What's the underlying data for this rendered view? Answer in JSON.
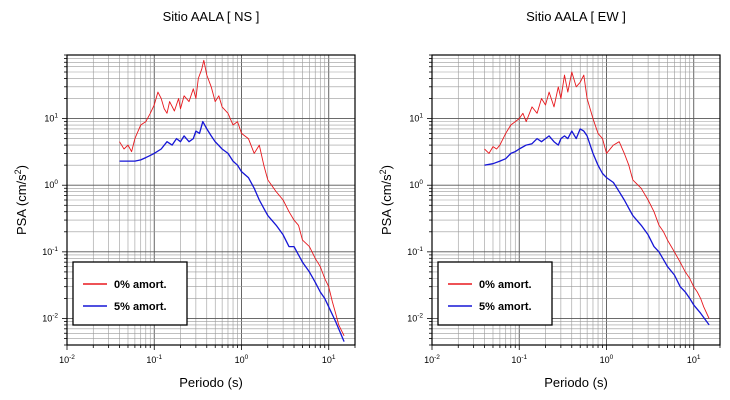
{
  "chart_data": [
    {
      "type": "line",
      "title": "Sitio AALA [ NS ]",
      "xlabel": "Periodo (s)",
      "ylabel": "PSA (cm/s",
      "ylabel_sup": "2",
      "ylabel_close": ")",
      "xscale": "log",
      "yscale": "log",
      "xlim": [
        0.01,
        20
      ],
      "ylim": [
        0.004,
        90
      ],
      "grid": true,
      "legend_position": "bottom-left",
      "xtick_labels": [
        {
          "value": 0.01,
          "base": "10",
          "exp": "-2"
        },
        {
          "value": 0.1,
          "base": "10",
          "exp": "-1"
        },
        {
          "value": 1,
          "base": "10",
          "exp": "0"
        },
        {
          "value": 10,
          "base": "10",
          "exp": "1"
        }
      ],
      "ytick_labels": [
        {
          "value": 0.01,
          "base": "10",
          "exp": "-2"
        },
        {
          "value": 0.1,
          "base": "10",
          "exp": "-1"
        },
        {
          "value": 1,
          "base": "10",
          "exp": "0"
        },
        {
          "value": 10,
          "base": "10",
          "exp": "1"
        }
      ],
      "series": [
        {
          "name": "0% amort.",
          "color": "#e8191e",
          "x": [
            0.04,
            0.045,
            0.05,
            0.055,
            0.06,
            0.07,
            0.08,
            0.09,
            0.1,
            0.11,
            0.12,
            0.13,
            0.14,
            0.15,
            0.17,
            0.19,
            0.2,
            0.22,
            0.25,
            0.28,
            0.3,
            0.32,
            0.35,
            0.37,
            0.4,
            0.45,
            0.5,
            0.55,
            0.6,
            0.7,
            0.8,
            0.9,
            1.0,
            1.2,
            1.4,
            1.6,
            1.8,
            2.0,
            2.5,
            3.0,
            3.5,
            4.0,
            4.5,
            5.0,
            6.0,
            7.0,
            8.0,
            9.0,
            10.0,
            11.0,
            12.0,
            13.0,
            15.0
          ],
          "y": [
            4.5,
            3.5,
            4.0,
            3.2,
            5.0,
            8.0,
            9.0,
            12.0,
            16.0,
            25.0,
            20.0,
            14.0,
            12.0,
            18.0,
            13.0,
            20.0,
            14.0,
            22.0,
            18.0,
            28.0,
            20.0,
            40.0,
            55.0,
            75.0,
            45.0,
            30.0,
            18.0,
            22.0,
            15.0,
            12.0,
            8.0,
            9.0,
            6.0,
            5.0,
            3.0,
            4.0,
            2.0,
            1.2,
            0.8,
            0.6,
            0.4,
            0.3,
            0.25,
            0.15,
            0.12,
            0.08,
            0.06,
            0.04,
            0.03,
            0.018,
            0.012,
            0.008,
            0.0055
          ]
        },
        {
          "name": "5% amort.",
          "color": "#1616d6",
          "x": [
            0.04,
            0.05,
            0.06,
            0.07,
            0.08,
            0.09,
            0.1,
            0.12,
            0.14,
            0.16,
            0.18,
            0.2,
            0.22,
            0.25,
            0.28,
            0.3,
            0.33,
            0.36,
            0.4,
            0.45,
            0.5,
            0.6,
            0.7,
            0.8,
            0.9,
            1.0,
            1.2,
            1.4,
            1.6,
            1.8,
            2.0,
            2.5,
            3.0,
            3.5,
            4.0,
            5.0,
            6.0,
            7.0,
            8.0,
            9.0,
            10.0,
            12.0,
            15.0
          ],
          "y": [
            2.3,
            2.3,
            2.3,
            2.4,
            2.6,
            2.8,
            3.0,
            3.5,
            4.5,
            4.0,
            5.0,
            4.5,
            5.5,
            4.5,
            5.0,
            6.5,
            6.0,
            9.0,
            7.0,
            5.5,
            4.5,
            3.5,
            3.0,
            2.3,
            2.0,
            1.6,
            1.3,
            0.9,
            0.6,
            0.45,
            0.35,
            0.25,
            0.18,
            0.12,
            0.12,
            0.07,
            0.05,
            0.035,
            0.025,
            0.02,
            0.015,
            0.009,
            0.0045
          ]
        }
      ]
    },
    {
      "type": "line",
      "title": "Sitio AALA [ EW ]",
      "xlabel": "Periodo (s)",
      "ylabel": "PSA (cm/s",
      "ylabel_sup": "2",
      "ylabel_close": ")",
      "xscale": "log",
      "yscale": "log",
      "xlim": [
        0.01,
        20
      ],
      "ylim": [
        0.004,
        90
      ],
      "grid": true,
      "legend_position": "bottom-left",
      "xtick_labels": [
        {
          "value": 0.01,
          "base": "10",
          "exp": "-2"
        },
        {
          "value": 0.1,
          "base": "10",
          "exp": "-1"
        },
        {
          "value": 1,
          "base": "10",
          "exp": "0"
        },
        {
          "value": 10,
          "base": "10",
          "exp": "1"
        }
      ],
      "ytick_labels": [
        {
          "value": 0.01,
          "base": "10",
          "exp": "-2"
        },
        {
          "value": 0.1,
          "base": "10",
          "exp": "-1"
        },
        {
          "value": 1,
          "base": "10",
          "exp": "0"
        },
        {
          "value": 10,
          "base": "10",
          "exp": "1"
        }
      ],
      "series": [
        {
          "name": "0% amort.",
          "color": "#e8191e",
          "x": [
            0.04,
            0.045,
            0.05,
            0.055,
            0.06,
            0.07,
            0.08,
            0.09,
            0.1,
            0.11,
            0.12,
            0.14,
            0.16,
            0.18,
            0.2,
            0.22,
            0.25,
            0.28,
            0.3,
            0.33,
            0.36,
            0.4,
            0.45,
            0.5,
            0.55,
            0.6,
            0.7,
            0.8,
            0.9,
            1.0,
            1.2,
            1.4,
            1.6,
            1.8,
            2.0,
            2.5,
            3.0,
            3.5,
            4.0,
            4.5,
            5.0,
            6.0,
            7.0,
            8.0,
            9.0,
            10.0,
            11.0,
            12.0,
            13.0,
            15.0
          ],
          "y": [
            3.5,
            3.0,
            3.8,
            3.5,
            4.0,
            6.0,
            8.0,
            9.0,
            10.0,
            12.0,
            9.0,
            15.0,
            12.0,
            20.0,
            16.0,
            25.0,
            15.0,
            30.0,
            20.0,
            45.0,
            25.0,
            50.0,
            30.0,
            35.0,
            45.0,
            20.0,
            10.0,
            6.0,
            5.0,
            3.0,
            4.0,
            4.5,
            3.0,
            2.0,
            1.2,
            0.9,
            0.6,
            0.4,
            0.25,
            0.2,
            0.15,
            0.1,
            0.07,
            0.05,
            0.04,
            0.03,
            0.025,
            0.02,
            0.015,
            0.01
          ]
        },
        {
          "name": "5% amort.",
          "color": "#1616d6",
          "x": [
            0.04,
            0.05,
            0.06,
            0.07,
            0.08,
            0.09,
            0.1,
            0.12,
            0.14,
            0.16,
            0.18,
            0.2,
            0.22,
            0.25,
            0.28,
            0.3,
            0.33,
            0.36,
            0.4,
            0.45,
            0.5,
            0.55,
            0.6,
            0.7,
            0.8,
            0.9,
            1.0,
            1.2,
            1.4,
            1.6,
            1.8,
            2.0,
            2.5,
            3.0,
            3.5,
            4.0,
            5.0,
            6.0,
            7.0,
            8.0,
            9.0,
            10.0,
            12.0,
            15.0
          ],
          "y": [
            2.0,
            2.1,
            2.3,
            2.5,
            3.0,
            3.2,
            3.5,
            4.0,
            4.2,
            5.0,
            4.5,
            5.0,
            5.5,
            4.5,
            4.0,
            5.0,
            5.5,
            5.0,
            6.5,
            5.0,
            7.0,
            6.5,
            5.5,
            3.0,
            2.0,
            1.5,
            1.3,
            1.1,
            0.8,
            0.6,
            0.45,
            0.35,
            0.25,
            0.18,
            0.12,
            0.1,
            0.06,
            0.045,
            0.03,
            0.025,
            0.02,
            0.016,
            0.012,
            0.008
          ]
        }
      ]
    }
  ]
}
